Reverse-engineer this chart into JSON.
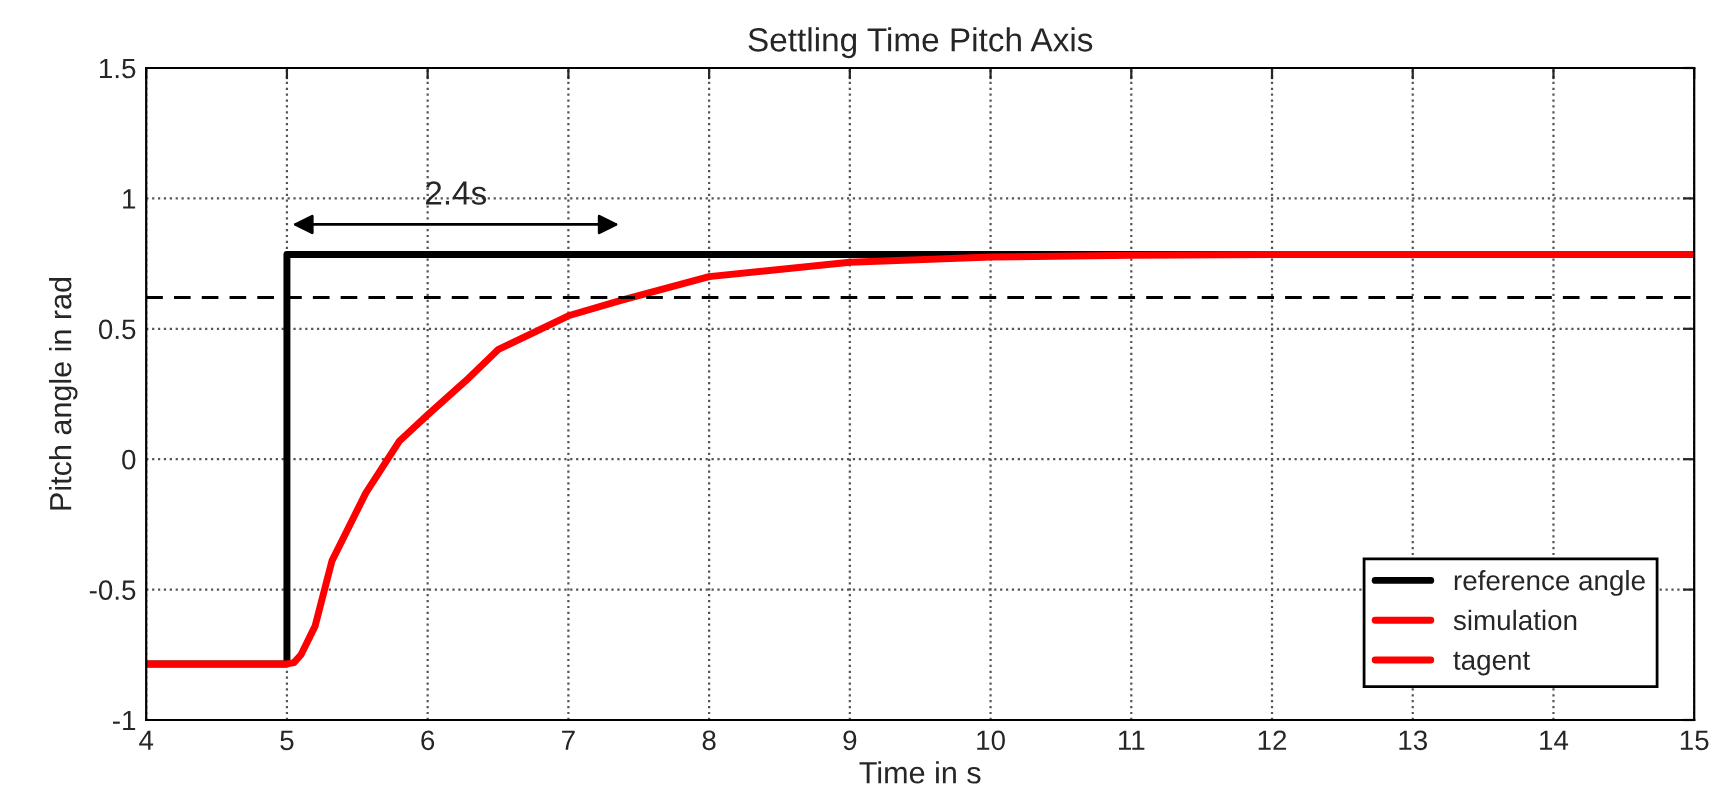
{
  "chart_data": {
    "type": "line",
    "title": "Settling Time Pitch Axis",
    "xlabel": "Time in s",
    "ylabel": "Pitch angle in rad",
    "xlim": [
      4,
      15
    ],
    "xticks": [
      4,
      5,
      6,
      7,
      8,
      9,
      10,
      11,
      12,
      13,
      14,
      15
    ],
    "ylim": [
      -1,
      1.5
    ],
    "yticks": [
      -1,
      -0.5,
      0,
      0.5,
      1,
      1.5
    ],
    "grid": true,
    "legend": "bottom right",
    "series": [
      {
        "name": "reference angle",
        "color": "#000000",
        "type": "step",
        "x": [
          4,
          5,
          15
        ],
        "values": [
          -0.785,
          0.785,
          0.785
        ]
      },
      {
        "name": "simulation",
        "color": "#ff0000",
        "x": [
          4,
          5,
          5.05,
          5.1,
          5.2,
          5.32,
          5.56,
          5.8,
          6,
          6.27,
          6.5,
          7,
          7.38,
          8,
          9,
          10,
          11,
          12,
          15
        ],
        "values": [
          -0.785,
          -0.785,
          -0.78,
          -0.75,
          -0.64,
          -0.39,
          -0.13,
          0.07,
          0.17,
          0.3,
          0.42,
          0.55,
          0.61,
          0.7,
          0.755,
          0.775,
          0.782,
          0.785,
          0.785
        ]
      },
      {
        "name": "tagent",
        "color": "#ff0000"
      }
    ],
    "ref_lines": [
      {
        "axis": "y",
        "value": 0.62,
        "color": "#000000",
        "line_style": "dashed"
      }
    ],
    "annotations": [
      "2.4s"
    ]
  }
}
